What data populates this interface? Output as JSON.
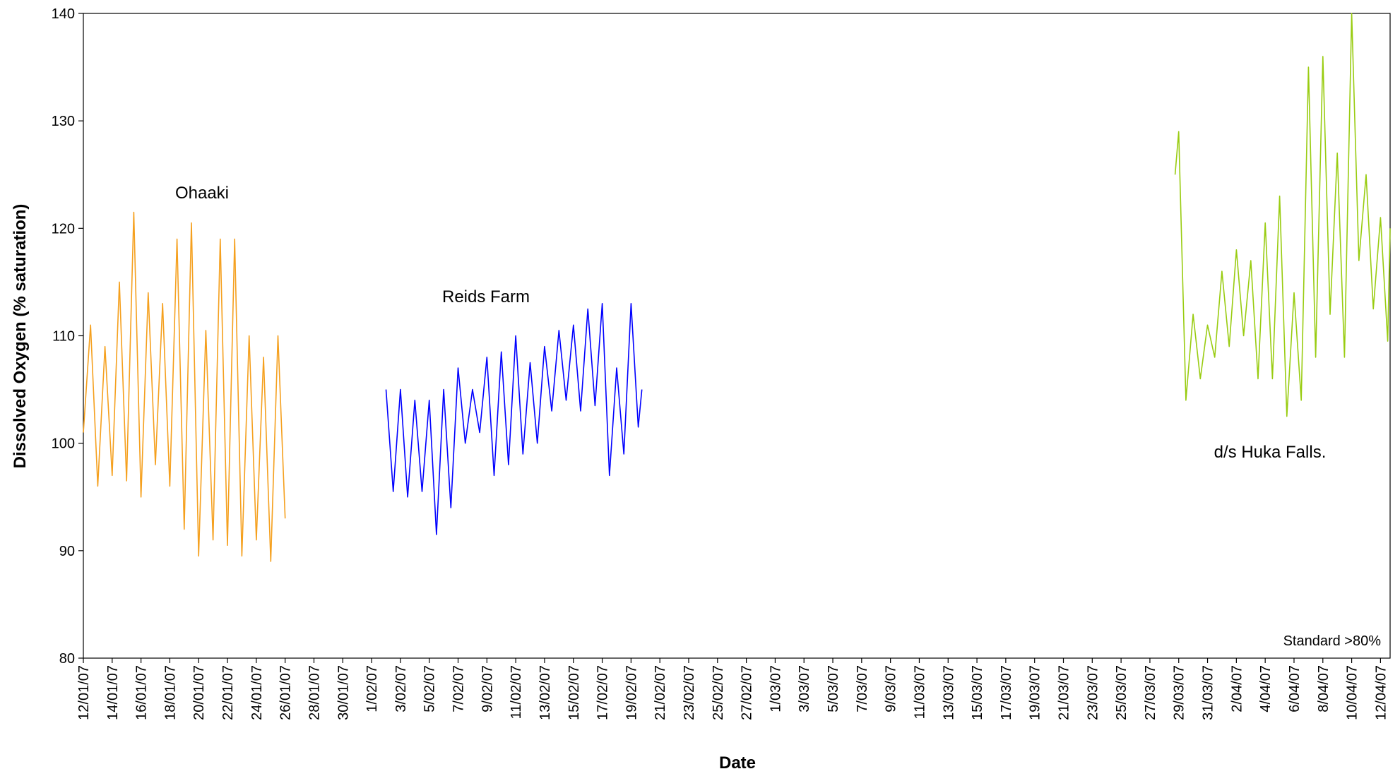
{
  "chart_data": {
    "type": "line",
    "y_label": "Dissolved Oxygen (% saturation)",
    "x_label": "Date",
    "ylim": [
      80,
      140
    ],
    "yticks": [
      80,
      90,
      100,
      110,
      120,
      130,
      140
    ],
    "xlim": [
      "2007-01-12T00:00",
      "2007-04-12T16:00"
    ],
    "xticks": [
      {
        "value": "2007-01-12T00:00",
        "label": "12/01/07"
      },
      {
        "value": "2007-01-14T00:00",
        "label": "14/01/07"
      },
      {
        "value": "2007-01-16T00:00",
        "label": "16/01/07"
      },
      {
        "value": "2007-01-18T00:00",
        "label": "18/01/07"
      },
      {
        "value": "2007-01-20T00:00",
        "label": "20/01/07"
      },
      {
        "value": "2007-01-22T00:00",
        "label": "22/01/07"
      },
      {
        "value": "2007-01-24T00:00",
        "label": "24/01/07"
      },
      {
        "value": "2007-01-26T00:00",
        "label": "26/01/07"
      },
      {
        "value": "2007-01-28T00:00",
        "label": "28/01/07"
      },
      {
        "value": "2007-01-30T00:00",
        "label": "30/01/07"
      },
      {
        "value": "2007-02-01T00:00",
        "label": "1/02/07"
      },
      {
        "value": "2007-02-03T00:00",
        "label": "3/02/07"
      },
      {
        "value": "2007-02-05T00:00",
        "label": "5/02/07"
      },
      {
        "value": "2007-02-07T00:00",
        "label": "7/02/07"
      },
      {
        "value": "2007-02-09T00:00",
        "label": "9/02/07"
      },
      {
        "value": "2007-02-11T00:00",
        "label": "11/02/07"
      },
      {
        "value": "2007-02-13T00:00",
        "label": "13/02/07"
      },
      {
        "value": "2007-02-15T00:00",
        "label": "15/02/07"
      },
      {
        "value": "2007-02-17T00:00",
        "label": "17/02/07"
      },
      {
        "value": "2007-02-19T00:00",
        "label": "19/02/07"
      },
      {
        "value": "2007-02-21T00:00",
        "label": "21/02/07"
      },
      {
        "value": "2007-02-23T00:00",
        "label": "23/02/07"
      },
      {
        "value": "2007-02-25T00:00",
        "label": "25/02/07"
      },
      {
        "value": "2007-02-27T00:00",
        "label": "27/02/07"
      },
      {
        "value": "2007-03-01T00:00",
        "label": "1/03/07"
      },
      {
        "value": "2007-03-03T00:00",
        "label": "3/03/07"
      },
      {
        "value": "2007-03-05T00:00",
        "label": "5/03/07"
      },
      {
        "value": "2007-03-07T00:00",
        "label": "7/03/07"
      },
      {
        "value": "2007-03-09T00:00",
        "label": "9/03/07"
      },
      {
        "value": "2007-03-11T00:00",
        "label": "11/03/07"
      },
      {
        "value": "2007-03-13T00:00",
        "label": "13/03/07"
      },
      {
        "value": "2007-03-15T00:00",
        "label": "15/03/07"
      },
      {
        "value": "2007-03-17T00:00",
        "label": "17/03/07"
      },
      {
        "value": "2007-03-19T00:00",
        "label": "19/03/07"
      },
      {
        "value": "2007-03-21T00:00",
        "label": "21/03/07"
      },
      {
        "value": "2007-03-23T00:00",
        "label": "23/03/07"
      },
      {
        "value": "2007-03-25T00:00",
        "label": "25/03/07"
      },
      {
        "value": "2007-03-27T00:00",
        "label": "27/03/07"
      },
      {
        "value": "2007-03-29T00:00",
        "label": "29/03/07"
      },
      {
        "value": "2007-03-31T00:00",
        "label": "31/03/07"
      },
      {
        "value": "2007-04-02T00:00",
        "label": "2/04/07"
      },
      {
        "value": "2007-04-04T00:00",
        "label": "4/04/07"
      },
      {
        "value": "2007-04-06T00:00",
        "label": "6/04/07"
      },
      {
        "value": "2007-04-08T00:00",
        "label": "8/04/07"
      },
      {
        "value": "2007-04-10T00:00",
        "label": "10/04/07"
      },
      {
        "value": "2007-04-12T00:00",
        "label": "12/04/07"
      }
    ],
    "annotations": [
      "Ohaaki",
      "Reids Farm",
      "d/s Huka Falls.",
      "Standard >80%"
    ],
    "series": [
      {
        "color": "#f5a01e",
        "x": [
          "2007-01-12T00:00",
          "2007-01-12T12:00",
          "2007-01-13T00:00",
          "2007-01-13T12:00",
          "2007-01-14T00:00",
          "2007-01-14T12:00",
          "2007-01-15T00:00",
          "2007-01-15T12:00",
          "2007-01-16T00:00",
          "2007-01-16T12:00",
          "2007-01-17T00:00",
          "2007-01-17T12:00",
          "2007-01-18T00:00",
          "2007-01-18T12:00",
          "2007-01-19T00:00",
          "2007-01-19T12:00",
          "2007-01-20T00:00",
          "2007-01-20T12:00",
          "2007-01-21T00:00",
          "2007-01-21T12:00",
          "2007-01-22T00:00",
          "2007-01-22T12:00",
          "2007-01-23T00:00",
          "2007-01-23T12:00",
          "2007-01-24T00:00",
          "2007-01-24T12:00",
          "2007-01-25T00:00",
          "2007-01-25T12:00",
          "2007-01-26T00:00"
        ],
        "values": [
          101,
          111,
          96,
          109,
          97,
          115,
          96.5,
          121.5,
          95,
          114,
          98,
          113,
          96,
          119,
          92,
          120.5,
          89.5,
          110.5,
          91,
          119,
          90.5,
          119,
          89.5,
          110,
          91,
          108,
          89,
          110,
          93
        ]
      },
      {
        "color": "#0000ff",
        "x": [
          "2007-02-02T00:00",
          "2007-02-02T12:00",
          "2007-02-03T00:00",
          "2007-02-03T12:00",
          "2007-02-04T00:00",
          "2007-02-04T12:00",
          "2007-02-05T00:00",
          "2007-02-05T12:00",
          "2007-02-06T00:00",
          "2007-02-06T12:00",
          "2007-02-07T00:00",
          "2007-02-07T12:00",
          "2007-02-08T00:00",
          "2007-02-08T12:00",
          "2007-02-09T00:00",
          "2007-02-09T12:00",
          "2007-02-10T00:00",
          "2007-02-10T12:00",
          "2007-02-11T00:00",
          "2007-02-11T12:00",
          "2007-02-12T00:00",
          "2007-02-12T12:00",
          "2007-02-13T00:00",
          "2007-02-13T12:00",
          "2007-02-14T00:00",
          "2007-02-14T12:00",
          "2007-02-15T00:00",
          "2007-02-15T12:00",
          "2007-02-16T00:00",
          "2007-02-16T12:00",
          "2007-02-17T00:00",
          "2007-02-17T12:00",
          "2007-02-18T00:00",
          "2007-02-18T12:00",
          "2007-02-19T00:00",
          "2007-02-19T12:00",
          "2007-02-19T18:00"
        ],
        "values": [
          105,
          95.5,
          105,
          95,
          104,
          95.5,
          104,
          91.5,
          105,
          94,
          107,
          100,
          105,
          101,
          108,
          97,
          108.5,
          98,
          110,
          99,
          107.5,
          100,
          109,
          103,
          110.5,
          104,
          111,
          103,
          112.5,
          103.5,
          113,
          97,
          107,
          99,
          113,
          101.5,
          105
        ]
      },
      {
        "color": "#99cc11",
        "x": [
          "2007-03-28T18:00",
          "2007-03-29T00:00",
          "2007-03-29T12:00",
          "2007-03-30T00:00",
          "2007-03-30T12:00",
          "2007-03-31T00:00",
          "2007-03-31T12:00",
          "2007-04-01T00:00",
          "2007-04-01T12:00",
          "2007-04-02T00:00",
          "2007-04-02T12:00",
          "2007-04-03T00:00",
          "2007-04-03T12:00",
          "2007-04-04T00:00",
          "2007-04-04T12:00",
          "2007-04-05T00:00",
          "2007-04-05T12:00",
          "2007-04-06T00:00",
          "2007-04-06T12:00",
          "2007-04-07T00:00",
          "2007-04-07T12:00",
          "2007-04-08T00:00",
          "2007-04-08T12:00",
          "2007-04-09T00:00",
          "2007-04-09T12:00",
          "2007-04-10T00:00",
          "2007-04-10T12:00",
          "2007-04-11T00:00",
          "2007-04-11T12:00",
          "2007-04-12T00:00",
          "2007-04-12T12:00",
          "2007-04-12T16:00"
        ],
        "values": [
          125,
          129,
          104,
          112,
          106,
          111,
          108,
          116,
          109,
          118,
          110,
          117,
          106,
          120.5,
          106,
          123,
          102.5,
          114,
          104,
          135,
          108,
          136,
          112,
          127,
          108,
          140,
          117,
          125,
          112.5,
          121,
          109.5,
          120
        ]
      }
    ]
  }
}
